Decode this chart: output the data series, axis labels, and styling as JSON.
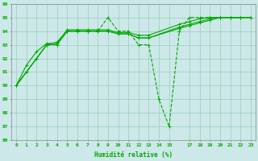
{
  "xlabel": "Humidité relative (%)",
  "bg_color": "#cce8e8",
  "grid_color": "#99ccbb",
  "line_color": "#00aa00",
  "ylim": [
    86,
    96
  ],
  "xlim": [
    -0.5,
    23.5
  ],
  "yticks": [
    86,
    87,
    88,
    89,
    90,
    91,
    92,
    93,
    94,
    95,
    96
  ],
  "xticks": [
    0,
    1,
    2,
    3,
    4,
    5,
    6,
    7,
    8,
    9,
    10,
    11,
    12,
    13,
    14,
    15,
    17,
    18,
    19,
    20,
    21,
    22,
    23
  ],
  "series": [
    {
      "x": [
        0,
        1,
        2,
        3,
        4,
        5,
        6,
        7,
        8,
        9,
        10,
        11,
        12,
        13,
        14,
        15,
        16,
        17,
        18,
        19,
        20,
        21,
        22,
        23
      ],
      "y": [
        90,
        91,
        92,
        93,
        93,
        94,
        94,
        94,
        94,
        95,
        94,
        94,
        93,
        93,
        89,
        87,
        94,
        95,
        95,
        95,
        95,
        95,
        95,
        95
      ],
      "dashed": true
    },
    {
      "x": [
        0,
        1,
        2,
        3,
        4,
        5,
        6,
        7,
        8,
        9,
        10,
        11,
        12,
        13,
        16,
        17,
        18,
        19,
        20,
        21,
        22,
        23
      ],
      "y": [
        90,
        91,
        92,
        93.0,
        93.2,
        94.0,
        94.0,
        94.0,
        94.0,
        94.0,
        93.8,
        93.8,
        93.5,
        93.5,
        94.3,
        94.5,
        94.7,
        94.9,
        95,
        95,
        95,
        95
      ],
      "dashed": false
    },
    {
      "x": [
        0,
        1,
        2,
        3,
        4,
        5,
        6,
        7,
        8,
        9,
        10,
        11,
        12,
        13,
        16,
        17,
        18,
        19,
        20,
        21,
        22,
        23
      ],
      "y": [
        90,
        91.5,
        92.5,
        93.1,
        93.1,
        94.1,
        94.1,
        94.1,
        94.1,
        94.1,
        93.9,
        93.9,
        93.7,
        93.7,
        94.5,
        94.7,
        94.9,
        95.0,
        95,
        95,
        95,
        95
      ],
      "dashed": false
    },
    {
      "x": [
        0,
        1,
        2,
        3,
        4,
        5,
        6,
        7,
        8,
        9,
        10,
        11,
        12,
        13,
        16,
        17,
        18,
        19,
        20,
        21,
        22,
        23
      ],
      "y": [
        90,
        91.0,
        92.0,
        93.0,
        93.0,
        94.0,
        94.0,
        94.0,
        94.0,
        94.0,
        93.8,
        93.8,
        93.5,
        93.5,
        94.2,
        94.4,
        94.6,
        94.8,
        95,
        95,
        95,
        95
      ],
      "dashed": false
    }
  ]
}
